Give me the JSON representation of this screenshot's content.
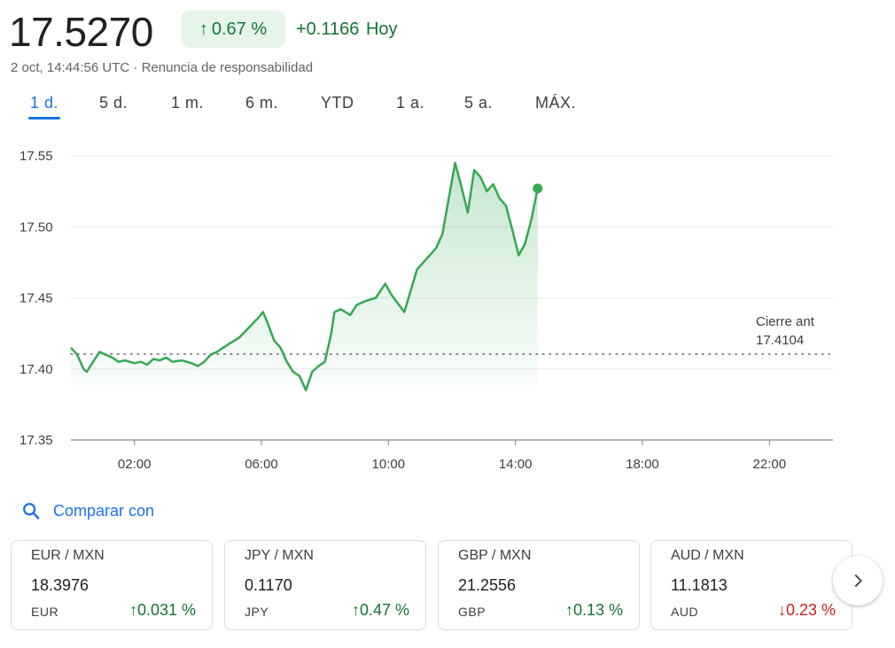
{
  "quote": {
    "price": "17.5270",
    "pct_change": "0.67 %",
    "abs_change": "+0.1166",
    "period": "Hoy",
    "timestamp": "2 oct, 14:44:56 UTC · ",
    "disclaimer": "Renuncia de responsabilidad"
  },
  "tabs": [
    {
      "label": "1 d.",
      "active": true
    },
    {
      "label": "5 d.",
      "active": false
    },
    {
      "label": "1 m.",
      "active": false
    },
    {
      "label": "6 m.",
      "active": false
    },
    {
      "label": "YTD",
      "active": false
    },
    {
      "label": "1 a.",
      "active": false
    },
    {
      "label": "5 a.",
      "active": false
    },
    {
      "label": "MÁX.",
      "active": false
    }
  ],
  "chart_data": {
    "type": "area",
    "y_ticks": [
      "17.55",
      "17.50",
      "17.45",
      "17.40",
      "17.35"
    ],
    "x_ticks": [
      "02:00",
      "06:00",
      "10:00",
      "14:00",
      "18:00",
      "22:00"
    ],
    "ylim": [
      17.35,
      17.55
    ],
    "xlim_hours": [
      0,
      24
    ],
    "previous_close": {
      "label": "Cierre ant",
      "value": "17.4104",
      "numeric": 17.4104
    },
    "series": [
      {
        "values": [
          [
            0.0,
            17.415
          ],
          [
            0.2,
            17.41
          ],
          [
            0.4,
            17.4
          ],
          [
            0.5,
            17.398
          ],
          [
            0.7,
            17.405
          ],
          [
            0.9,
            17.412
          ],
          [
            1.1,
            17.41
          ],
          [
            1.3,
            17.408
          ],
          [
            1.5,
            17.405
          ],
          [
            1.7,
            17.406
          ],
          [
            2.0,
            17.404
          ],
          [
            2.2,
            17.405
          ],
          [
            2.4,
            17.403
          ],
          [
            2.6,
            17.407
          ],
          [
            2.8,
            17.406
          ],
          [
            3.0,
            17.408
          ],
          [
            3.2,
            17.405
          ],
          [
            3.5,
            17.406
          ],
          [
            3.8,
            17.404
          ],
          [
            4.0,
            17.402
          ],
          [
            4.2,
            17.405
          ],
          [
            4.4,
            17.41
          ],
          [
            4.6,
            17.412
          ],
          [
            4.8,
            17.415
          ],
          [
            5.0,
            17.418
          ],
          [
            5.3,
            17.422
          ],
          [
            5.6,
            17.429
          ],
          [
            5.9,
            17.436
          ],
          [
            6.05,
            17.44
          ],
          [
            6.2,
            17.432
          ],
          [
            6.4,
            17.42
          ],
          [
            6.6,
            17.415
          ],
          [
            6.8,
            17.405
          ],
          [
            7.0,
            17.398
          ],
          [
            7.2,
            17.395
          ],
          [
            7.4,
            17.385
          ],
          [
            7.6,
            17.398
          ],
          [
            7.8,
            17.402
          ],
          [
            8.0,
            17.405
          ],
          [
            8.1,
            17.415
          ],
          [
            8.2,
            17.425
          ],
          [
            8.3,
            17.44
          ],
          [
            8.5,
            17.442
          ],
          [
            8.8,
            17.438
          ],
          [
            9.0,
            17.445
          ],
          [
            9.3,
            17.448
          ],
          [
            9.6,
            17.45
          ],
          [
            9.9,
            17.46
          ],
          [
            10.1,
            17.452
          ],
          [
            10.3,
            17.446
          ],
          [
            10.5,
            17.44
          ],
          [
            10.7,
            17.455
          ],
          [
            10.9,
            17.47
          ],
          [
            11.1,
            17.475
          ],
          [
            11.3,
            17.48
          ],
          [
            11.5,
            17.485
          ],
          [
            11.7,
            17.495
          ],
          [
            11.9,
            17.52
          ],
          [
            12.1,
            17.545
          ],
          [
            12.3,
            17.528
          ],
          [
            12.5,
            17.51
          ],
          [
            12.7,
            17.54
          ],
          [
            12.9,
            17.535
          ],
          [
            13.1,
            17.525
          ],
          [
            13.3,
            17.53
          ],
          [
            13.5,
            17.52
          ],
          [
            13.7,
            17.515
          ],
          [
            13.9,
            17.498
          ],
          [
            14.1,
            17.48
          ],
          [
            14.3,
            17.488
          ],
          [
            14.5,
            17.505
          ],
          [
            14.7,
            17.527
          ]
        ]
      }
    ]
  },
  "compare": {
    "label": "Comparar con",
    "icon": "search-icon"
  },
  "cards": [
    {
      "pair": "EUR / MXN",
      "value": "18.3976",
      "currency": "EUR",
      "change": "0.031 %",
      "direction": "up"
    },
    {
      "pair": "JPY / MXN",
      "value": "0.1170",
      "currency": "JPY",
      "change": "0.47 %",
      "direction": "up"
    },
    {
      "pair": "GBP / MXN",
      "value": "21.2556",
      "currency": "GBP",
      "change": "0.13 %",
      "direction": "up"
    },
    {
      "pair": "AUD / MXN",
      "value": "11.1813",
      "currency": "AUD",
      "change": "0.23 %",
      "direction": "down"
    }
  ],
  "colors": {
    "positive": "#137333",
    "negative": "#c5221f",
    "line": "#34a853",
    "accent": "#1a73e8"
  },
  "arrows": {
    "up": "↑",
    "down": "↓"
  },
  "next_icon": "chevron-right-icon"
}
